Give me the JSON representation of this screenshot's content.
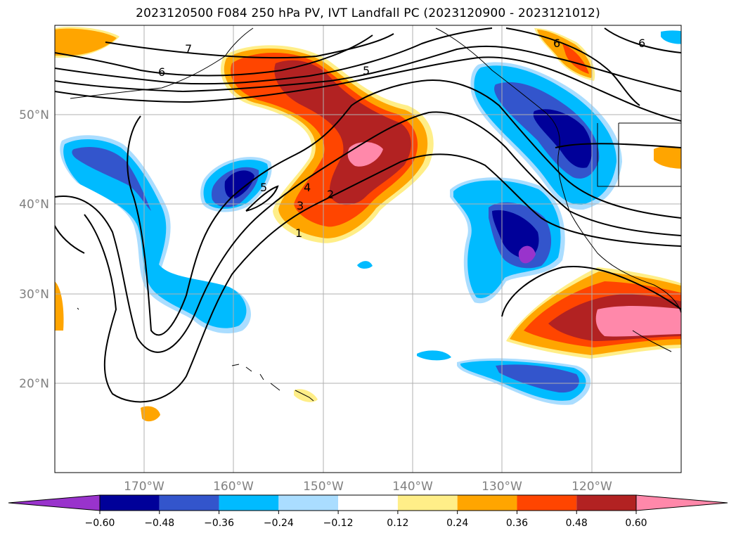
{
  "title": "2023120500 F084 250 hPa PV, IVT Landfall PC (2023120900 - 2023121012)",
  "lat_labels": [
    "50°N",
    "40°N",
    "30°N",
    "20°N"
  ],
  "lon_labels": [
    "170°W",
    "160°W",
    "150°W",
    "140°W",
    "130°W",
    "120°W"
  ],
  "contour_labels": [
    "7",
    "6",
    "5",
    "6",
    "6",
    "5",
    "4",
    "3",
    "2",
    "1"
  ],
  "colorbar": {
    "ticks": [
      "−0.60",
      "−0.48",
      "−0.36",
      "−0.24",
      "−0.12",
      "0.12",
      "0.24",
      "0.36",
      "0.48",
      "0.60"
    ],
    "colors": [
      "#9933cc",
      "#000099",
      "#3355cc",
      "#00bbff",
      "#aaddff",
      "#ffffff",
      "#ffee88",
      "#ffa500",
      "#ff4500",
      "#b22222",
      "#ff88aa"
    ]
  },
  "colors": {
    "positive_high": "#ff88aa",
    "positive": "#b22222",
    "negative_low": "#000099",
    "negative": "#3355cc"
  }
}
